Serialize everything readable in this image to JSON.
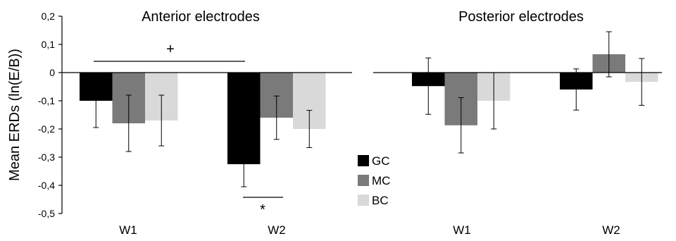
{
  "chart_data": [
    {
      "type": "bar",
      "title": "Anterior electrodes",
      "ylabel": "Mean ERDs (ln(E/B))",
      "xlabel": "",
      "ylim": [
        -0.5,
        0.2
      ],
      "yticks": [
        "0,2",
        "0,1",
        "0",
        "-0,1",
        "-0,2",
        "-0,3",
        "-0,4",
        "-0,5"
      ],
      "categories": [
        "W1",
        "W2"
      ],
      "series": [
        {
          "name": "GC",
          "color": "#000000",
          "values": [
            -0.1,
            -0.325
          ],
          "errors": [
            0.095,
            0.08
          ]
        },
        {
          "name": "MC",
          "color": "#7a7a7a",
          "values": [
            -0.18,
            -0.16
          ],
          "errors": [
            0.1,
            0.077
          ]
        },
        {
          "name": "BC",
          "color": "#d9d9d9",
          "values": [
            -0.17,
            -0.2
          ],
          "errors": [
            0.09,
            0.066
          ]
        }
      ],
      "annotations": [
        {
          "text": "+",
          "meaning": "significance bar spanning W1 and W2"
        },
        {
          "text": "*",
          "meaning": "significance bar under W2 GC"
        }
      ]
    },
    {
      "type": "bar",
      "title": "Posterior electrodes",
      "categories": [
        "W1",
        "W2"
      ],
      "series": [
        {
          "name": "GC",
          "color": "#000000",
          "values": [
            -0.048,
            -0.06
          ],
          "errors": [
            0.1,
            0.073
          ]
        },
        {
          "name": "MC",
          "color": "#7a7a7a",
          "values": [
            -0.187,
            0.065
          ],
          "errors": [
            0.098,
            0.08
          ]
        },
        {
          "name": "BC",
          "color": "#d9d9d9",
          "values": [
            -0.1,
            -0.033
          ],
          "errors": [
            0.1,
            0.083
          ]
        }
      ]
    }
  ],
  "legend": [
    {
      "label": "GC",
      "color": "#000000"
    },
    {
      "label": "MC",
      "color": "#7a7a7a"
    },
    {
      "label": "BC",
      "color": "#d9d9d9"
    }
  ]
}
